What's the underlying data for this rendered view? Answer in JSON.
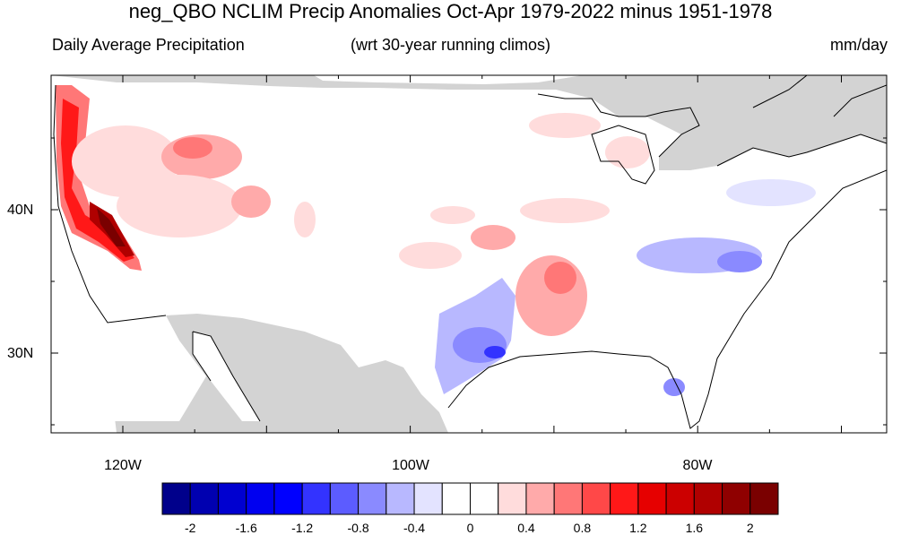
{
  "title": "neg_QBO NCLIM Precip Anomalies Oct-Apr 1979-2022 minus 1951-1978",
  "left_label": "Daily Average Precipitation",
  "center_label": "(wrt 30-year running climos)",
  "right_label": "mm/day",
  "lat_labels": [
    "40N",
    "30N"
  ],
  "lon_labels": [
    "120W",
    "100W",
    "80W"
  ],
  "colors": {
    "land": "#ffffff",
    "nodata": "#d3d3d3",
    "coast": "#000000"
  },
  "colorbar": {
    "colors": [
      "#00008b",
      "#0000b0",
      "#0000d0",
      "#0000f0",
      "#0000ff",
      "#3333ff",
      "#5c5cff",
      "#8a8aff",
      "#b8b8ff",
      "#e3e3ff",
      "#ffffff",
      "#ffffff",
      "#ffdcdc",
      "#ffaaaa",
      "#ff7777",
      "#ff4848",
      "#ff1818",
      "#e60000",
      "#cc0000",
      "#b00000",
      "#8f0000",
      "#7a0000"
    ],
    "labels": [
      "-2",
      "-1.6",
      "-1.2",
      "-0.8",
      "-0.4",
      "0",
      "0.4",
      "0.8",
      "1.2",
      "1.6",
      "2"
    ]
  }
}
